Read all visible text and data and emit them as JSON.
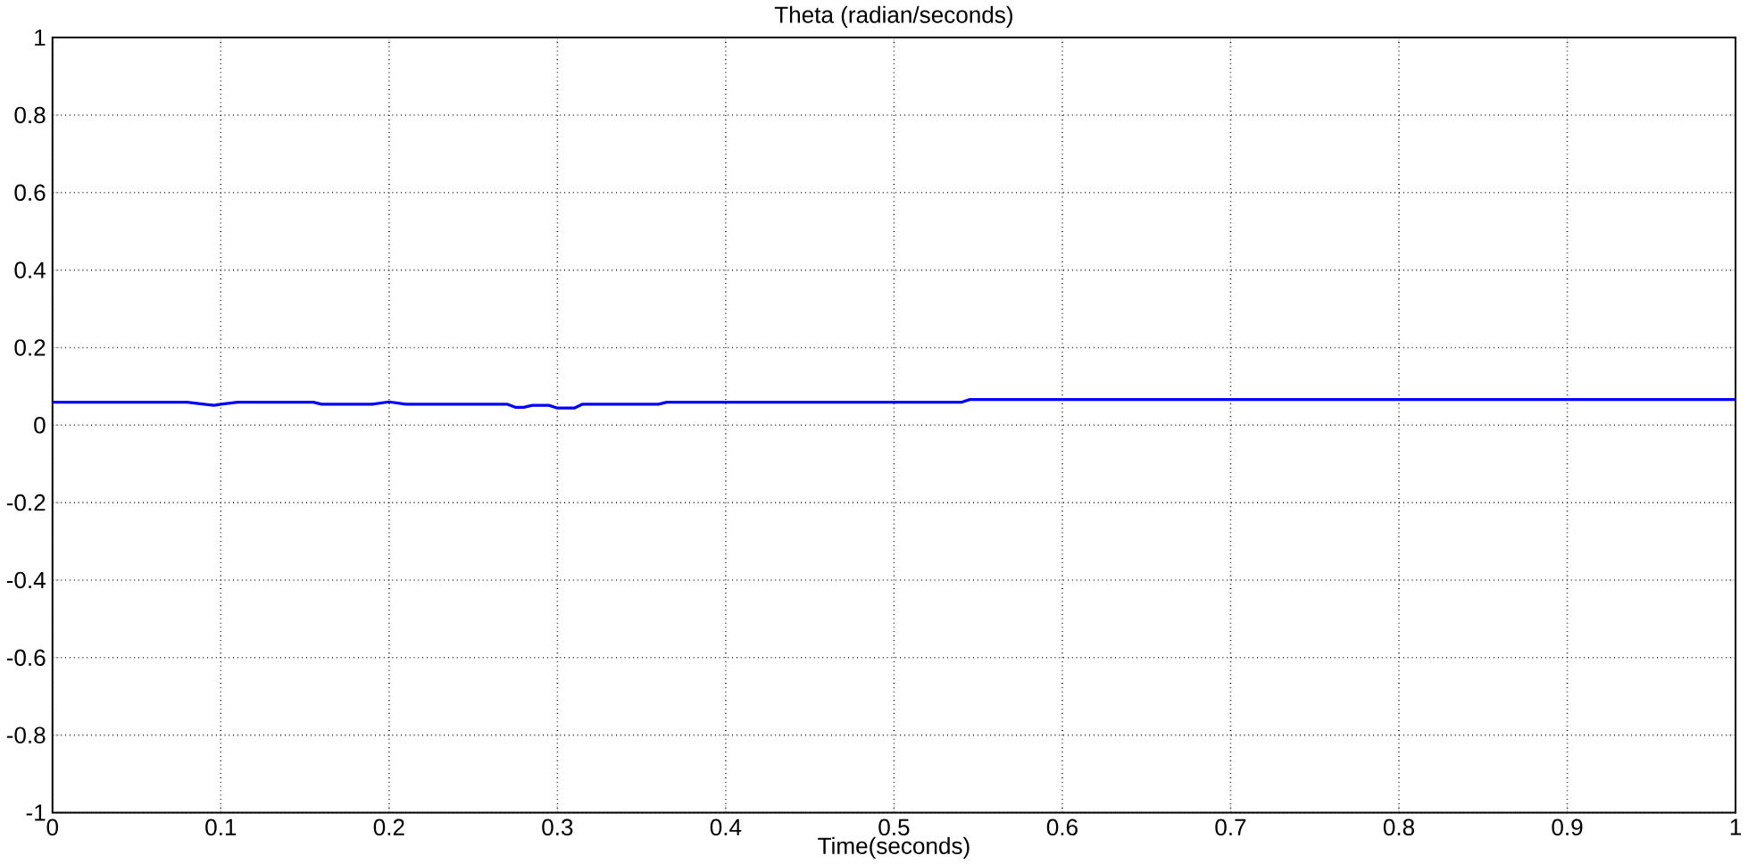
{
  "chart_data": {
    "type": "line",
    "title": "Theta (radian/seconds)",
    "xlabel": "Time(seconds)",
    "x": [
      0,
      0.08,
      0.09,
      0.096,
      0.1,
      0.11,
      0.155,
      0.16,
      0.19,
      0.2,
      0.21,
      0.27,
      0.275,
      0.28,
      0.285,
      0.295,
      0.3,
      0.31,
      0.315,
      0.36,
      0.365,
      0.54,
      0.545,
      0.7,
      1
    ],
    "series": [
      {
        "color": "#0000ff",
        "values": [
          0.059,
          0.059,
          0.054,
          0.051,
          0.054,
          0.059,
          0.059,
          0.054,
          0.054,
          0.06,
          0.054,
          0.054,
          0.046,
          0.046,
          0.051,
          0.051,
          0.044,
          0.044,
          0.054,
          0.054,
          0.059,
          0.059,
          0.066,
          0.066,
          0.066
        ]
      }
    ],
    "xlim": [
      0,
      1
    ],
    "ylim": [
      -1,
      1
    ],
    "xticks": [
      0,
      0.1,
      0.2,
      0.3,
      0.4,
      0.5,
      0.6,
      0.7,
      0.8,
      0.9,
      1
    ],
    "yticks": [
      -1,
      -0.8,
      -0.6,
      -0.4,
      -0.2,
      0,
      0.2,
      0.4,
      0.6,
      0.8,
      1
    ],
    "grid": true,
    "marker": "none",
    "line_style": "solid"
  }
}
